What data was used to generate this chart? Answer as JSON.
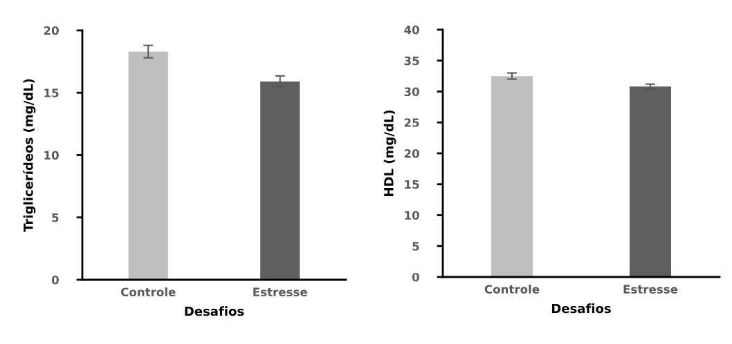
{
  "chart_data": [
    {
      "type": "bar",
      "xlabel": "Desafios",
      "ylabel": "Triglicerídeos (mg/dL)",
      "categories": [
        "Controle",
        "Estresse"
      ],
      "values": [
        18.3,
        15.9
      ],
      "errors": [
        0.5,
        0.45
      ],
      "colors": [
        "#bfbfbf",
        "#5f5f5f"
      ],
      "ylim": [
        0,
        20
      ],
      "yticks": [
        0,
        5,
        10,
        15,
        20
      ],
      "grid": false,
      "legend": false
    },
    {
      "type": "bar",
      "xlabel": "Desafios",
      "ylabel": "HDL (mg/dL)",
      "categories": [
        "Controle",
        "Estresse"
      ],
      "values": [
        32.5,
        30.8
      ],
      "errors": [
        0.5,
        0.4
      ],
      "colors": [
        "#bfbfbf",
        "#5f5f5f"
      ],
      "ylim": [
        0,
        40
      ],
      "yticks": [
        0,
        5,
        10,
        15,
        20,
        25,
        30,
        35,
        40
      ],
      "grid": false,
      "legend": false
    }
  ]
}
